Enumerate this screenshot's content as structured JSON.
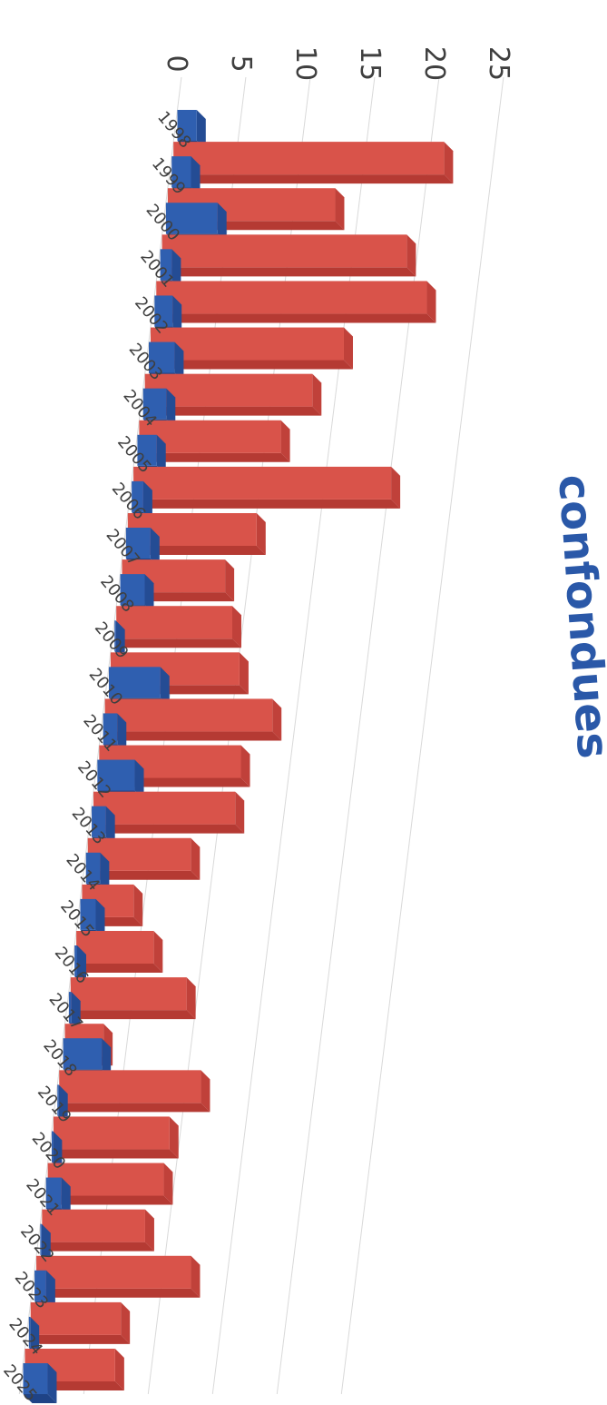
{
  "chart_data": {
    "type": "bar",
    "title": "confondues",
    "categories": [
      "1998",
      "1999",
      "2000",
      "2001",
      "2002",
      "2003",
      "2004",
      "2005",
      "2006",
      "2007",
      "2008",
      "2009",
      "2010",
      "2011",
      "2012",
      "2013",
      "2014",
      "2015",
      "2016",
      "2017",
      "2018",
      "2019",
      "2020",
      "2021",
      "2022",
      "2023",
      "2024",
      "2025"
    ],
    "series": [
      {
        "values": [
          0,
          21,
          13,
          19,
          21,
          15,
          13,
          11,
          20,
          10,
          8,
          9,
          10,
          13,
          11,
          11,
          8,
          4,
          6,
          9,
          3,
          11,
          9,
          9,
          8,
          12,
          7,
          7
        ]
      },
      {
        "values": [
          1.5,
          1.5,
          4,
          0.9,
          1.4,
          2,
          1.8,
          1.5,
          0.9,
          1.9,
          1.9,
          0.1,
          4,
          1.1,
          2.9,
          1.1,
          1.1,
          1.2,
          0.2,
          0.2,
          3,
          0.1,
          0.1,
          1.2,
          0.1,
          0.9,
          0.1,
          1.9
        ]
      }
    ],
    "ylim": [
      0,
      25
    ],
    "yticks": [
      "0",
      "5",
      "10",
      "15",
      "20",
      "25"
    ],
    "grid": true,
    "colors": {
      "red": "#d9534a",
      "blue": "#2f5fb0"
    }
  }
}
